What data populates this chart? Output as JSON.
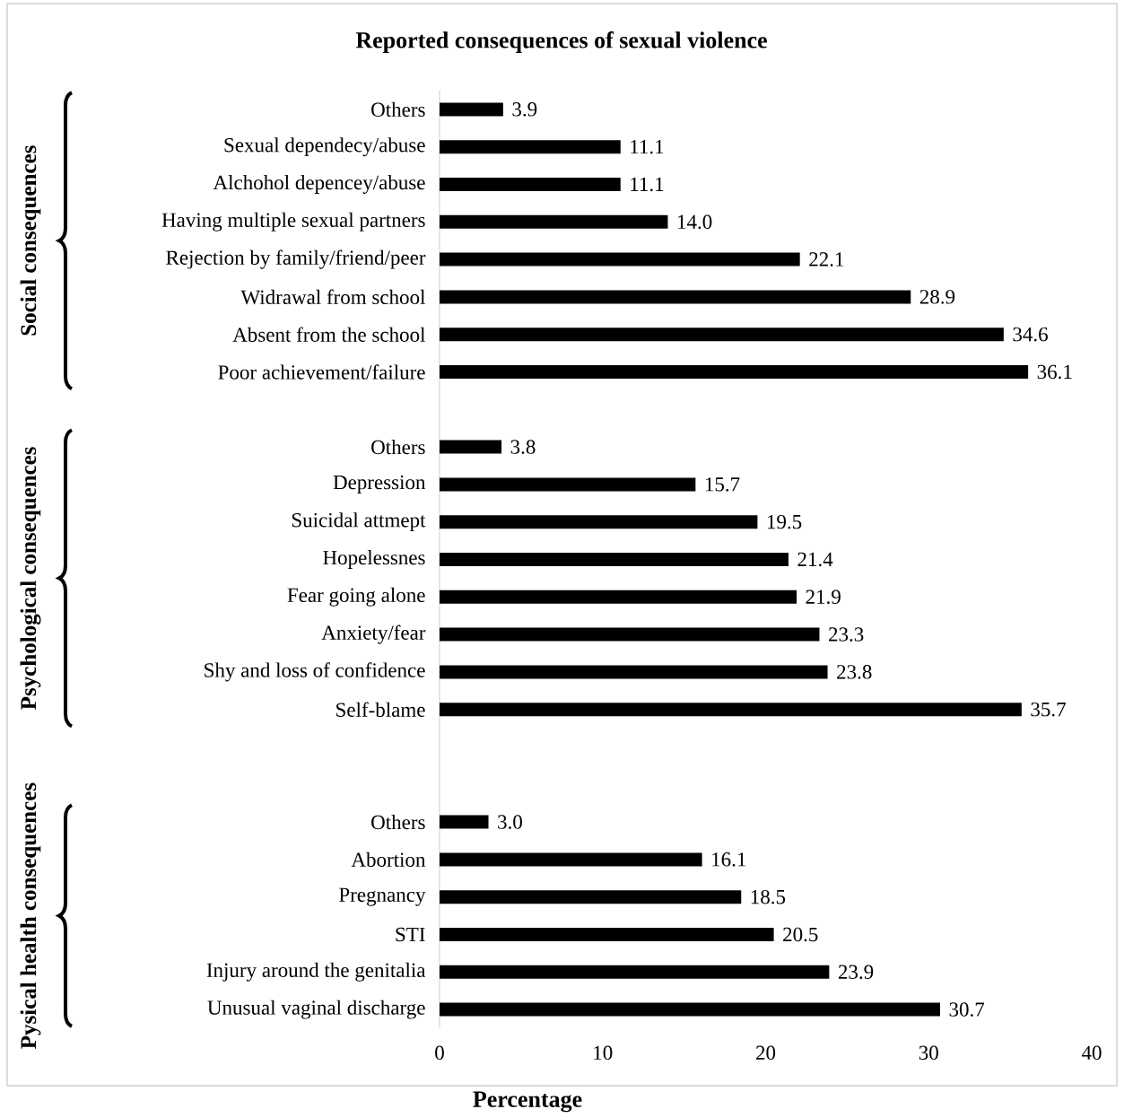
{
  "chart_data": {
    "type": "bar",
    "orientation": "horizontal",
    "title": "Reported consequences of sexual violence",
    "xlabel": "Percentage",
    "categories": [
      "Others",
      "Sexual dependecy/abuse",
      "Alchohol depencey/abuse",
      "Having multiple sexual partners",
      "Rejection by family/friend/peer",
      "Widrawal from school",
      "Absent from the school",
      "Poor achievement/failure",
      null,
      "Others",
      "Depression",
      "Suicidal attmept",
      "Hopelessnes",
      "Fear going alone",
      "Anxiety/fear",
      "Shy and loss of confidence",
      "Self-blame",
      null,
      null,
      "Others",
      "Abortion",
      "Pregnancy",
      "STI",
      "Injury around the genitalia",
      "Unusual vaginal discharge"
    ],
    "values": [
      3.9,
      11.1,
      11.1,
      14.0,
      22.1,
      28.9,
      34.6,
      36.1,
      null,
      3.8,
      15.7,
      19.5,
      21.4,
      21.9,
      23.3,
      23.8,
      35.7,
      null,
      null,
      3.0,
      16.1,
      18.5,
      20.5,
      23.9,
      30.7
    ],
    "value_labels": [
      "3.9",
      "11.1",
      "11.1",
      "14.0",
      "22.1",
      "28.9",
      "34.6",
      "36.1",
      null,
      "3.8",
      "15.7",
      "19.5",
      "21.4",
      "21.9",
      "23.3",
      "23.8",
      "35.7",
      null,
      null,
      "3.0",
      "16.1",
      "18.5",
      "20.5",
      "23.9",
      "30.7"
    ],
    "color": "#000000",
    "xlim": [
      0,
      40
    ],
    "xticks": [
      0,
      10,
      20,
      30,
      40
    ],
    "annotations": [
      "Social consequences",
      "Psychological consequences",
      "Pysical health consequences"
    ]
  }
}
